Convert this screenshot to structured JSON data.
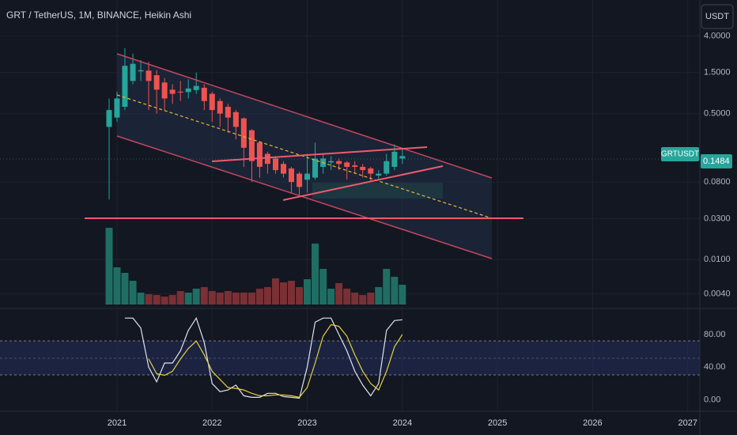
{
  "header": {
    "title": "GRT / TetherUS, 1M, BINANCE, Heikin Ashi",
    "currency": "USDT"
  },
  "chart_data": [
    {
      "type": "candlestick",
      "log_scale": true,
      "grid": true,
      "x": [
        2020.917,
        2021.0,
        2021.083,
        2021.167,
        2021.25,
        2021.333,
        2021.417,
        2021.5,
        2021.583,
        2021.667,
        2021.75,
        2021.833,
        2021.917,
        2022.0,
        2022.083,
        2022.167,
        2022.25,
        2022.333,
        2022.417,
        2022.5,
        2022.583,
        2022.667,
        2022.75,
        2022.833,
        2022.917,
        2023.0,
        2023.083,
        2023.167,
        2023.25,
        2023.333,
        2023.417,
        2023.5,
        2023.583,
        2023.667,
        2023.75,
        2023.833,
        2023.917,
        2024.0
      ],
      "series": [
        {
          "name": "GRTUSDT",
          "up_color": "#26a69a",
          "down_color": "#ef5350",
          "open": [
            0.35,
            0.45,
            0.6,
            1.2,
            1.55,
            1.58,
            1.4,
            1.15,
            0.95,
            0.9,
            0.89,
            0.94,
            1.0,
            0.85,
            0.7,
            0.6,
            0.52,
            0.44,
            0.32,
            0.23,
            0.17,
            0.15,
            0.13,
            0.115,
            0.1,
            0.085,
            0.09,
            0.12,
            0.135,
            0.14,
            0.135,
            0.125,
            0.12,
            0.115,
            0.095,
            0.1,
            0.12,
            0.15
          ],
          "high": [
            0.75,
            0.9,
            2.9,
            2.5,
            2.1,
            2.0,
            1.6,
            1.3,
            1.1,
            1.2,
            1.25,
            1.5,
            1.1,
            0.9,
            0.75,
            0.65,
            0.55,
            0.45,
            0.33,
            0.24,
            0.18,
            0.16,
            0.14,
            0.12,
            0.105,
            0.17,
            0.23,
            0.17,
            0.16,
            0.15,
            0.14,
            0.14,
            0.13,
            0.12,
            0.11,
            0.17,
            0.22,
            0.2
          ],
          "low": [
            0.05,
            0.4,
            0.55,
            1.1,
            1.2,
            0.55,
            0.5,
            0.55,
            0.65,
            0.7,
            0.75,
            0.85,
            0.55,
            0.4,
            0.35,
            0.3,
            0.25,
            0.12,
            0.08,
            0.09,
            0.1,
            0.1,
            0.09,
            0.06,
            0.055,
            0.06,
            0.085,
            0.1,
            0.11,
            0.11,
            0.085,
            0.1,
            0.09,
            0.08,
            0.085,
            0.095,
            0.11,
            0.13
          ],
          "close": [
            0.55,
            0.75,
            1.8,
            1.9,
            1.6,
            1.2,
            0.95,
            0.75,
            0.85,
            0.88,
            0.98,
            1.05,
            0.7,
            0.55,
            0.5,
            0.45,
            0.35,
            0.2,
            0.14,
            0.12,
            0.13,
            0.11,
            0.1,
            0.08,
            0.07,
            0.1,
            0.15,
            0.15,
            0.14,
            0.13,
            0.12,
            0.12,
            0.11,
            0.1,
            0.1,
            0.14,
            0.18,
            0.16
          ]
        }
      ],
      "last_price": 0.1484,
      "xlim": [
        2019.77,
        2027.127
      ],
      "xticks": [
        2021,
        2022,
        2023,
        2024,
        2025,
        2026,
        2027
      ],
      "ylim": [
        0.003,
        5
      ],
      "yticks": [
        {
          "value": 4,
          "label": "4.0000"
        },
        {
          "value": 1.5,
          "label": "1.5000"
        },
        {
          "value": 0.5,
          "label": "0.5000"
        },
        {
          "value": 0.08,
          "label": "0.0800"
        },
        {
          "value": 0.03,
          "label": "0.0300"
        },
        {
          "value": 0.01,
          "label": "0.0100"
        },
        {
          "value": 0.004,
          "label": "0.0040"
        }
      ]
    },
    {
      "type": "bar",
      "up_color": "#1f6e63",
      "down_color": "#7b3035",
      "ylim": [
        0,
        100
      ],
      "values": [
        97,
        47,
        40,
        30,
        15,
        13,
        12,
        10,
        12,
        17,
        15,
        20,
        22,
        17,
        15,
        17,
        15,
        15,
        15,
        20,
        22,
        33,
        28,
        30,
        22,
        32,
        77,
        45,
        20,
        27,
        20,
        15,
        12,
        15,
        22,
        45,
        35,
        25
      ]
    },
    {
      "type": "line",
      "ylim": [
        -14,
        107
      ],
      "yticks": [
        {
          "value": 0,
          "label": "0.00"
        },
        {
          "value": 40,
          "label": "40.00"
        },
        {
          "value": 80,
          "label": "80.00"
        }
      ],
      "series": [
        {
          "color": "#e0e3eb",
          "values": [
            null,
            null,
            100,
            100,
            88,
            40,
            22,
            45,
            45,
            60,
            85,
            100,
            70,
            20,
            10,
            12,
            18,
            5,
            3,
            3,
            8,
            8,
            4,
            3,
            2,
            40,
            95,
            100,
            100,
            80,
            60,
            35,
            18,
            5,
            20,
            85,
            97,
            98
          ]
        },
        {
          "color": "#e6d13a",
          "values": [
            null,
            null,
            null,
            null,
            null,
            50,
            32,
            30,
            35,
            50,
            63,
            72,
            55,
            35,
            25,
            15,
            14,
            12,
            8,
            5,
            5,
            6,
            6,
            5,
            3,
            15,
            45,
            78,
            92,
            90,
            78,
            55,
            35,
            20,
            12,
            35,
            65,
            80
          ]
        }
      ]
    }
  ]
}
